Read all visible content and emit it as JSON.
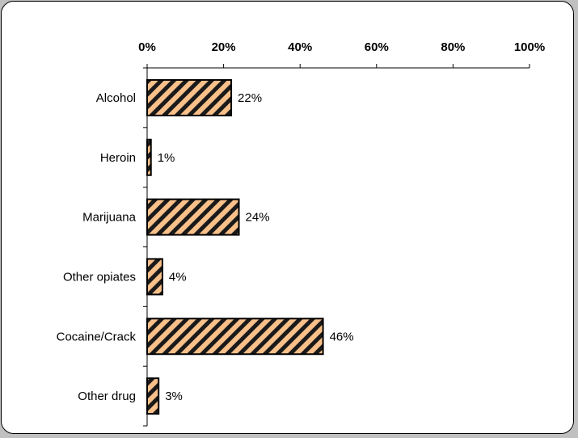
{
  "chart_data": {
    "type": "bar",
    "orientation": "horizontal",
    "categories": [
      "Alcohol",
      "Heroin",
      "Marijuana",
      "Other opiates",
      "Cocaine/Crack",
      "Other drug"
    ],
    "values": [
      22,
      1,
      24,
      4,
      46,
      3
    ],
    "data_labels": [
      "22%",
      "1%",
      "24%",
      "4%",
      "46%",
      "3%"
    ],
    "xlim": [
      0,
      100
    ],
    "x_ticks": [
      0,
      20,
      40,
      60,
      80,
      100
    ],
    "x_tick_labels": [
      "0%",
      "20%",
      "40%",
      "60%",
      "80%",
      "100%"
    ],
    "x_axis_position": "top",
    "title": "",
    "xlabel": "",
    "ylabel": "",
    "grid": false,
    "legend": false,
    "colors": {
      "bar_fill": "#f9c08a",
      "bar_hatch": "#1a1a1a",
      "bar_border": "#000000",
      "axis": "#000000",
      "frame_shadow": "#c0c0c0"
    }
  }
}
